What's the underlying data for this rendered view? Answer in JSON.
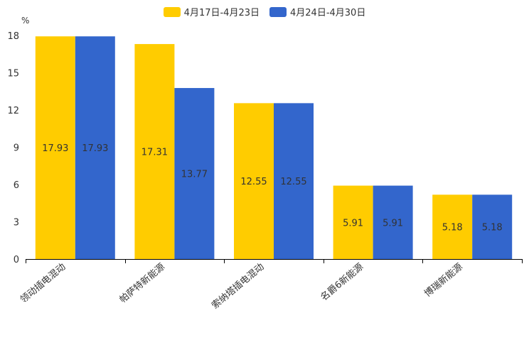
{
  "chart_data": {
    "type": "bar",
    "title": "",
    "unit": "%",
    "categories": [
      "领动插电混动",
      "帕萨特新能源",
      "索纳塔插电混动",
      "名爵6新能源",
      "博瑞新能源"
    ],
    "series": [
      {
        "name": "4月17日-4月23日",
        "color": "#ffcc00",
        "values": [
          17.93,
          17.31,
          12.55,
          5.91,
          5.18
        ]
      },
      {
        "name": "4月24日-4月30日",
        "color": "#3366cc",
        "values": [
          17.93,
          13.77,
          12.55,
          5.91,
          5.18
        ]
      }
    ],
    "ylim": [
      0,
      18
    ],
    "yticks": [
      0,
      3,
      6,
      9,
      12,
      15,
      18
    ],
    "xlabel": "",
    "ylabel": "%",
    "legend_position": "top-center",
    "grid": false
  }
}
